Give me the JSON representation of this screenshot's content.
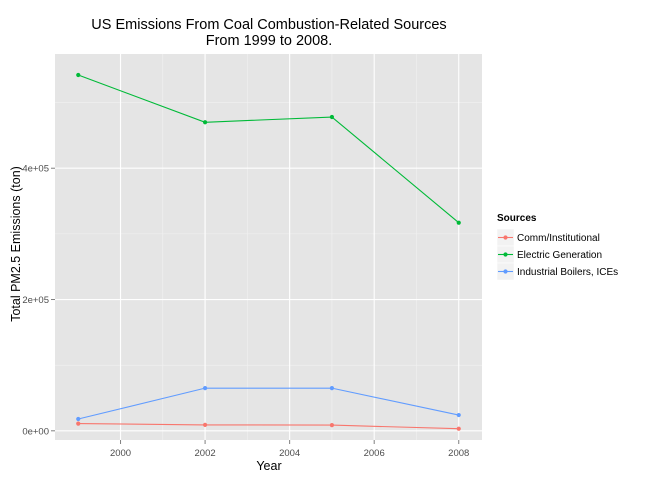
{
  "chart_data": {
    "type": "line",
    "title_lines": [
      "US Emissions From Coal Combustion-Related Sources",
      "From 1999 to 2008."
    ],
    "xlabel": "Year",
    "ylabel": "Total PM2.5 Emissions (ton)",
    "x": [
      1999,
      2002,
      2005,
      2008
    ],
    "xlim": [
      1998.45,
      2008.55
    ],
    "ylim": [
      -14000,
      574000
    ],
    "x_ticks": [
      2000,
      2002,
      2004,
      2006,
      2008
    ],
    "x_tick_labels": [
      "2000",
      "2002",
      "2004",
      "2006",
      "2008"
    ],
    "y_ticks": [
      0,
      200000,
      400000
    ],
    "y_tick_labels": [
      "0e+00",
      "2e+05",
      "4e+05"
    ],
    "grid": true,
    "legend": {
      "title": "Sources",
      "position": "right"
    },
    "series": [
      {
        "name": "Comm/Institutional",
        "color": "#F8766D",
        "values": [
          11000,
          9000,
          8700,
          3200
        ]
      },
      {
        "name": "Electric Generation",
        "color": "#00BA38",
        "values": [
          542000,
          470000,
          478000,
          317000
        ]
      },
      {
        "name": "Industrial Boilers, ICEs",
        "color": "#619CFF",
        "values": [
          18000,
          65000,
          65000,
          24000
        ]
      }
    ]
  }
}
